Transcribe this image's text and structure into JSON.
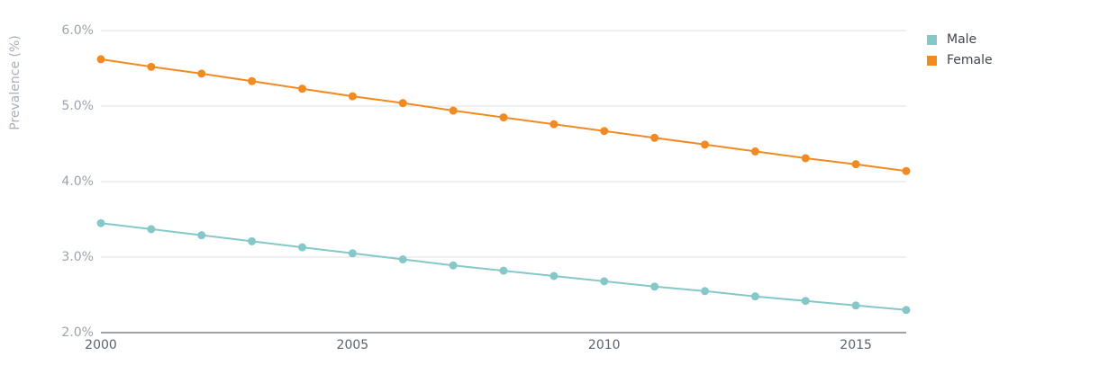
{
  "chart_data": {
    "type": "line",
    "ylabel": "Prevalence (%)",
    "xlabel": "",
    "ylim": [
      2.0,
      6.0
    ],
    "xlim": [
      2000,
      2016
    ],
    "yticks": [
      2.0,
      3.0,
      4.0,
      5.0,
      6.0
    ],
    "ytick_labels": [
      "2.0%",
      "3.0%",
      "4.0%",
      "5.0%",
      "6.0%"
    ],
    "xticks": [
      2000,
      2005,
      2010,
      2015
    ],
    "xtick_labels": [
      "2000",
      "2005",
      "2010",
      "2015"
    ],
    "grid": true,
    "legend_position": "top-right",
    "x": [
      2000,
      2001,
      2002,
      2003,
      2004,
      2005,
      2006,
      2007,
      2008,
      2009,
      2010,
      2011,
      2012,
      2013,
      2014,
      2015,
      2016
    ],
    "series": [
      {
        "name": "Male",
        "color": "#86c8c8",
        "values": [
          3.45,
          3.37,
          3.29,
          3.21,
          3.13,
          3.05,
          2.97,
          2.89,
          2.82,
          2.75,
          2.68,
          2.61,
          2.55,
          2.48,
          2.42,
          2.36,
          2.3
        ]
      },
      {
        "name": "Female",
        "color": "#f28a22",
        "values": [
          5.62,
          5.52,
          5.43,
          5.33,
          5.23,
          5.13,
          5.04,
          4.94,
          4.85,
          4.76,
          4.67,
          4.58,
          4.49,
          4.4,
          4.31,
          4.23,
          4.14
        ]
      }
    ]
  }
}
